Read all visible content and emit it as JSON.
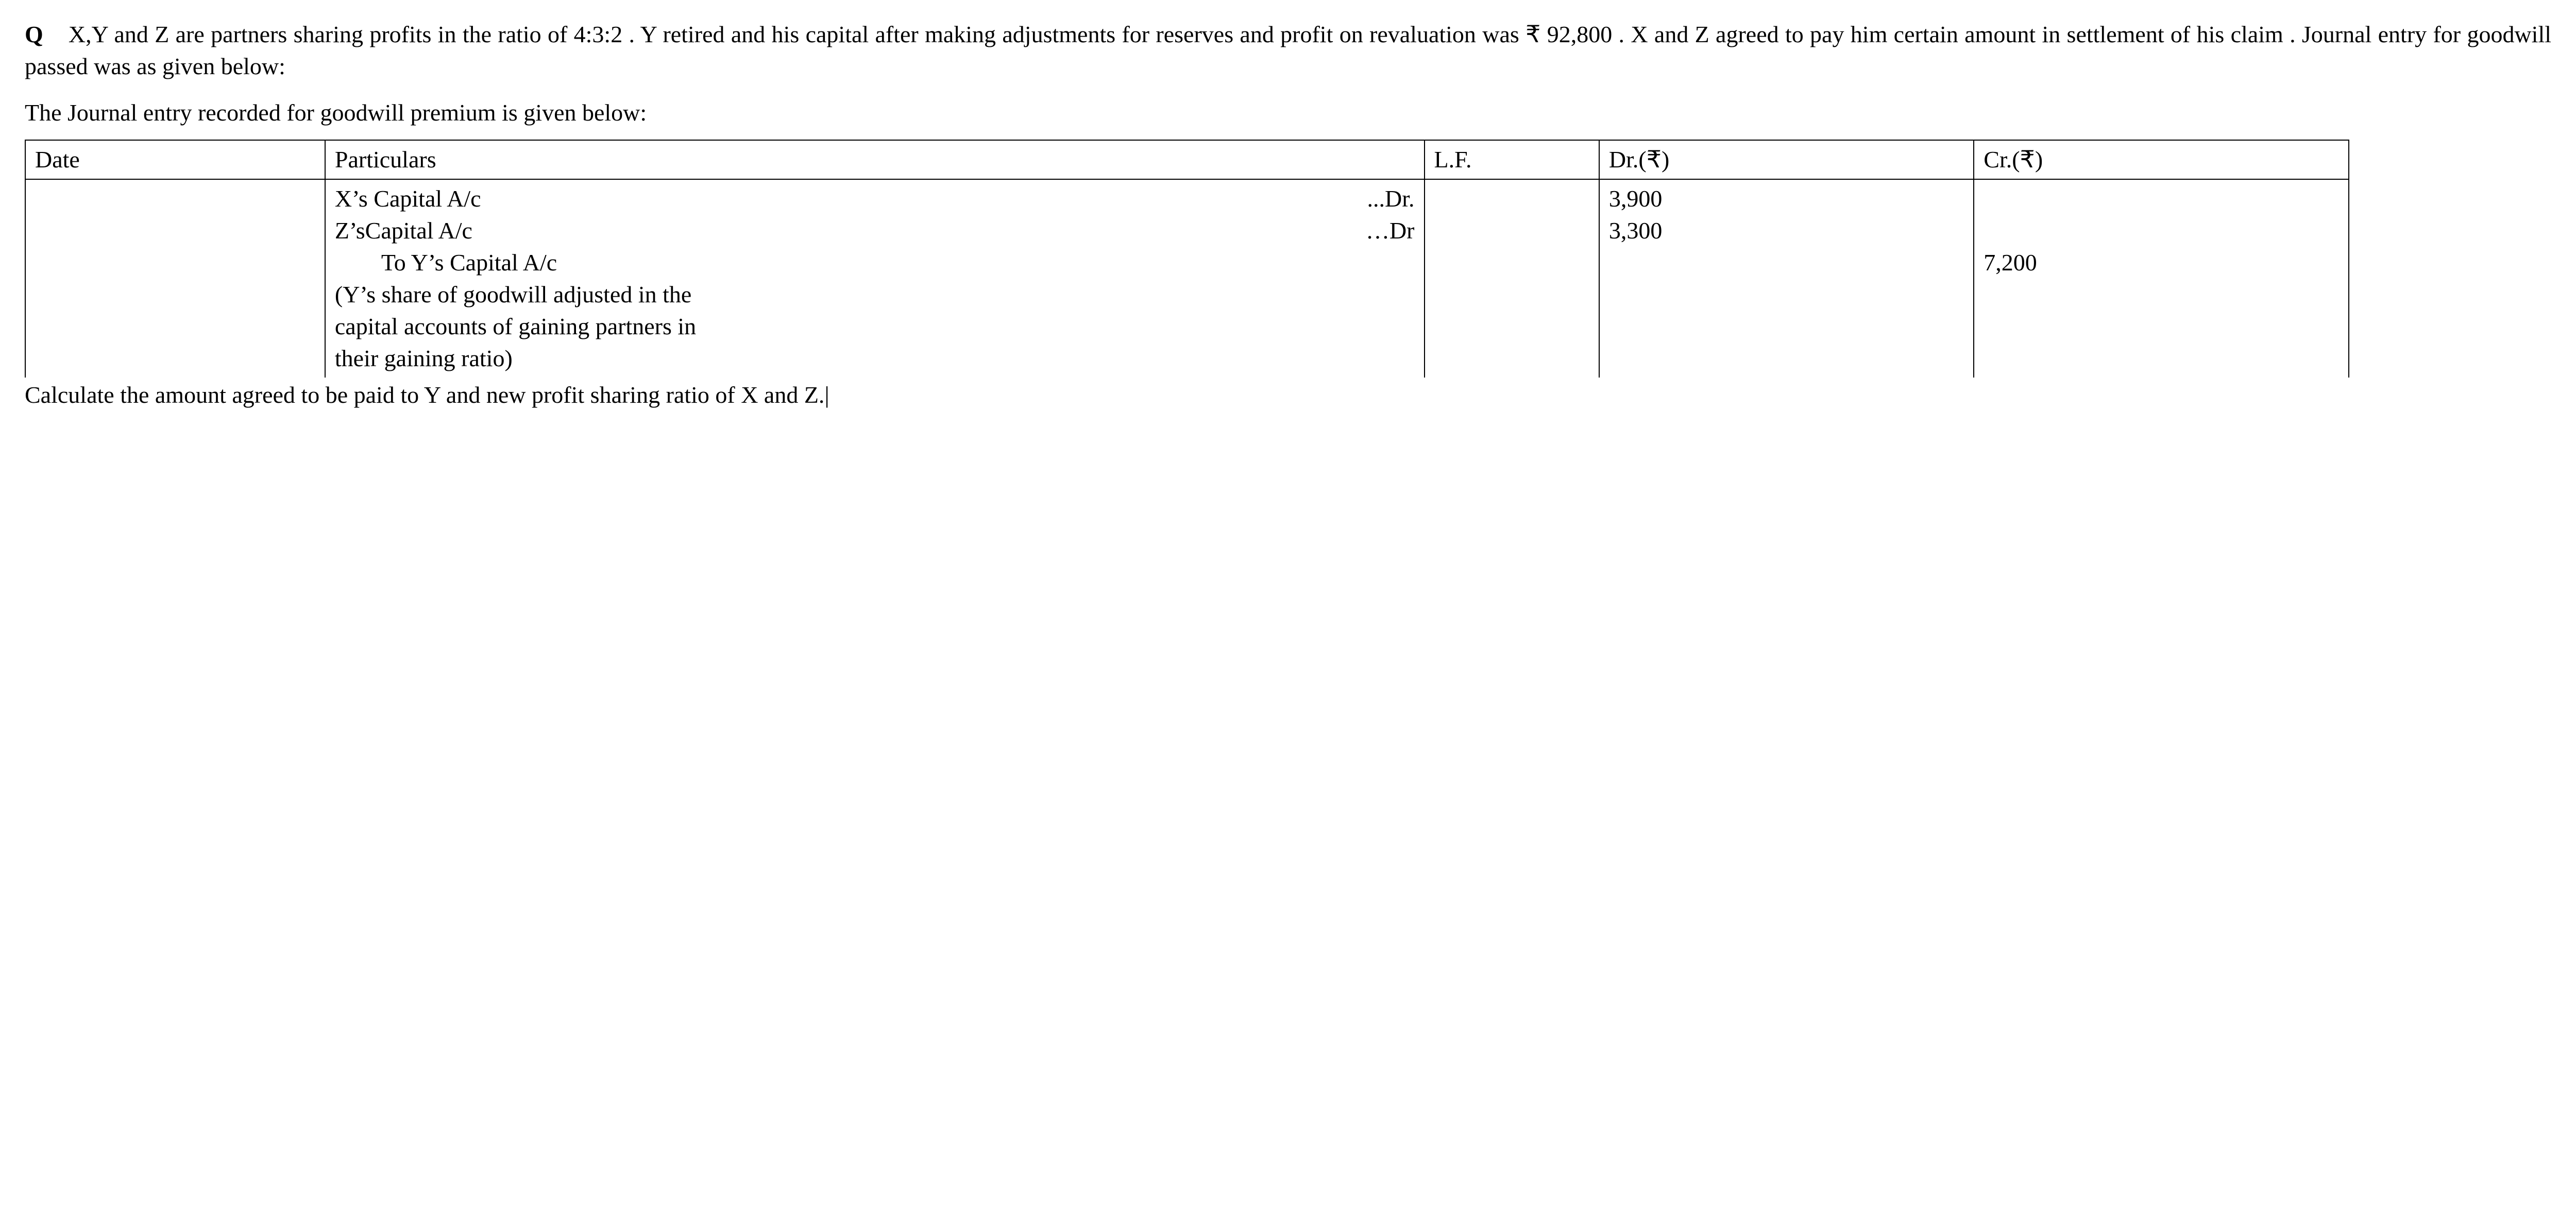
{
  "question": {
    "label": "Q",
    "text": "X,Y and Z are partners sharing profits in the ratio of 4:3:2 . Y retired and his capital after making adjustments for reserves and profit on revaluation was ₹ 92,800 . X and Z agreed to pay him certain amount in settlement of his claim . Journal entry for goodwill passed was as given below:"
  },
  "intro": "The Journal entry recorded for goodwill premium is given below:",
  "table": {
    "headers": {
      "date": "Date",
      "particulars": "Particulars",
      "lf": "L.F.",
      "dr": "Dr.(₹)",
      "cr": "Cr.(₹)"
    },
    "rows": {
      "x_capital": {
        "label": "X’s Capital A/c",
        "suffix": "...Dr.",
        "dr": "3,900"
      },
      "z_capital": {
        "label": "Z’sCapital A/c",
        "suffix": "…Dr",
        "dr": "3,300"
      },
      "to_y": {
        "label": "To Y’s Capital A/c",
        "cr": "7,200"
      },
      "narration_l1": "(Y’s share of goodwill adjusted in the",
      "narration_l2": "capital accounts of gaining partners in",
      "narration_l3": "their gaining ratio)"
    }
  },
  "footer": "Calculate the amount agreed to be paid to Y and new profit sharing ratio of X and Z."
}
